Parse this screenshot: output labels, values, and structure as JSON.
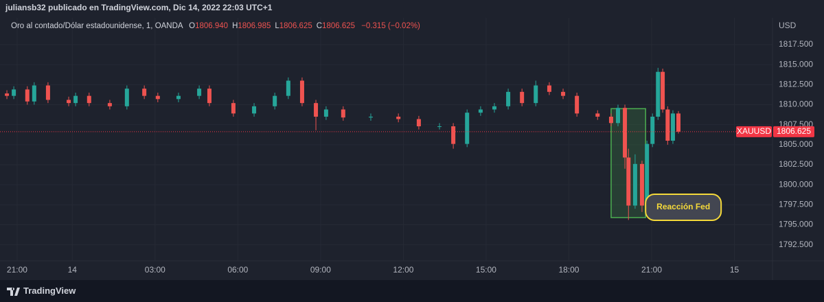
{
  "publisher": "juliansb32 publicado en TradingView.com, Dic 14, 2022 22:03 UTC+1",
  "footer_logo": "TradingView",
  "legend_header": {
    "symbol": "Oro al contado/Dólar estadounidense, 1, OANDA",
    "fields": [
      {
        "key": "O",
        "value": "1806.940"
      },
      {
        "key": "H",
        "value": "1806.985"
      },
      {
        "key": "L",
        "value": "1806.625"
      },
      {
        "key": "C",
        "value": "1806.625"
      }
    ],
    "change": "−0.315 (−0.02%)"
  },
  "chart_data": {
    "type": "candlestick",
    "currency": "USD",
    "up_color": "#26a69a",
    "down_color": "#ef5350",
    "x": [
      -0.37,
      -0.12,
      0.37,
      0.62,
      1.12,
      1.87,
      2.12,
      2.61,
      3.36,
      3.98,
      4.61,
      5.1,
      5.85,
      6.6,
      6.97,
      7.84,
      8.59,
      9.34,
      9.83,
      10.33,
      10.83,
      11.2,
      11.82,
      12.82,
      13.82,
      14.56,
      15.31,
      15.81,
      16.31,
      16.8,
      17.3,
      17.8,
      18.3,
      18.8,
      19.29,
      19.79,
      20.29,
      21.04,
      21.53,
      21.78,
      22.03,
      22.16,
      22.4,
      22.65,
      22.83,
      23.03,
      23.23,
      23.4,
      23.58,
      23.77,
      23.97
    ],
    "open": [
      1811.4,
      1811.1,
      1811.9,
      1810.4,
      1812.4,
      1810.6,
      1810.2,
      1811.1,
      1810.2,
      1809.8,
      1812.0,
      1811.1,
      1810.7,
      1811.1,
      1812.0,
      1810.2,
      1808.9,
      1809.8,
      1811.1,
      1813.0,
      1810.2,
      1808.5,
      1809.4,
      1808.4,
      1808.5,
      1808.2,
      1807.3,
      1807.3,
      1805.1,
      1809.0,
      1809.4,
      1809.8,
      1811.6,
      1810.2,
      1812.4,
      1811.6,
      1811.1,
      1808.9,
      1808.5,
      1807.7,
      1809.6,
      1803.4,
      1797.4,
      1802.6,
      1797.4,
      1805.1,
      1808.5,
      1814.1,
      1809.4,
      1805.5,
      1808.9
    ],
    "high": [
      1811.8,
      1812.3,
      1812.3,
      1812.8,
      1812.8,
      1811.0,
      1811.5,
      1811.5,
      1810.6,
      1812.4,
      1812.4,
      1811.5,
      1811.5,
      1812.4,
      1812.4,
      1810.6,
      1810.2,
      1811.5,
      1813.4,
      1813.4,
      1810.6,
      1809.8,
      1809.8,
      1808.9,
      1808.9,
      1808.6,
      1807.7,
      1807.7,
      1809.4,
      1809.8,
      1810.2,
      1812.0,
      1812.0,
      1813.0,
      1812.8,
      1812.0,
      1811.5,
      1809.3,
      1808.9,
      1810.0,
      1810.0,
      1804.5,
      1803.8,
      1803.0,
      1805.5,
      1808.9,
      1814.6,
      1814.5,
      1809.8,
      1809.3,
      1809.2
    ],
    "low": [
      1810.7,
      1810.7,
      1810.0,
      1810.0,
      1810.2,
      1809.8,
      1809.8,
      1809.8,
      1809.4,
      1809.4,
      1810.7,
      1810.3,
      1810.3,
      1810.7,
      1809.8,
      1808.5,
      1808.5,
      1809.4,
      1810.7,
      1809.8,
      1806.8,
      1808.1,
      1808.0,
      1808.0,
      1807.8,
      1806.9,
      1806.9,
      1804.5,
      1804.7,
      1808.6,
      1809.0,
      1809.4,
      1809.8,
      1809.8,
      1811.2,
      1810.7,
      1808.5,
      1808.1,
      1807.3,
      1807.3,
      1802.0,
      1795.6,
      1797.0,
      1796.6,
      1797.0,
      1804.7,
      1808.1,
      1809.0,
      1805.0,
      1805.1,
      1806.4
    ],
    "close": [
      1811.1,
      1811.9,
      1810.4,
      1812.4,
      1810.6,
      1810.2,
      1811.1,
      1810.2,
      1809.8,
      1812.0,
      1811.1,
      1810.7,
      1811.1,
      1812.0,
      1810.2,
      1808.9,
      1809.8,
      1811.1,
      1813.0,
      1810.2,
      1808.5,
      1809.4,
      1808.4,
      1808.5,
      1808.2,
      1807.3,
      1807.3,
      1805.1,
      1809.0,
      1809.4,
      1809.8,
      1811.6,
      1810.2,
      1812.4,
      1811.6,
      1811.1,
      1808.9,
      1808.5,
      1807.7,
      1809.6,
      1803.4,
      1797.4,
      1802.6,
      1797.4,
      1805.1,
      1808.5,
      1814.1,
      1809.4,
      1805.5,
      1808.9,
      1806.625
    ],
    "last_price": {
      "symbol": "XAUUSD",
      "value": 1806.625,
      "color": "#f23645"
    },
    "annotation": {
      "text": "Reacción Fed",
      "x": [
        21.53,
        22.78
      ],
      "y": [
        1795.9,
        1809.5
      ],
      "color": "#4caf50",
      "label_color": "#f5d93a"
    },
    "xlim": [
      -0.62,
      27.38
    ],
    "xticks": [
      {
        "value": 0,
        "label": "21:00"
      },
      {
        "value": 2,
        "label": "14"
      },
      {
        "value": 5,
        "label": "03:00"
      },
      {
        "value": 8,
        "label": "06:00"
      },
      {
        "value": 11,
        "label": "09:00"
      },
      {
        "value": 14,
        "label": "12:00"
      },
      {
        "value": 17,
        "label": "15:00"
      },
      {
        "value": 20,
        "label": "18:00"
      },
      {
        "value": 23,
        "label": "21:00"
      },
      {
        "value": 26,
        "label": "15"
      }
    ],
    "ylim": [
      1790.5,
      1820.5
    ],
    "yticks": [
      {
        "value": 1792.5,
        "label": "1792.500"
      },
      {
        "value": 1795,
        "label": "1795.000"
      },
      {
        "value": 1797.5,
        "label": "1797.500"
      },
      {
        "value": 1800,
        "label": "1800.000"
      },
      {
        "value": 1802.5,
        "label": "1802.500"
      },
      {
        "value": 1805,
        "label": "1805.000"
      },
      {
        "value": 1807.5,
        "label": "1807.500"
      },
      {
        "value": 1810,
        "label": "1810.000"
      },
      {
        "value": 1812.5,
        "label": "1812.500"
      },
      {
        "value": 1815,
        "label": "1815.000"
      },
      {
        "value": 1817.5,
        "label": "1817.500"
      }
    ],
    "grid": true
  }
}
